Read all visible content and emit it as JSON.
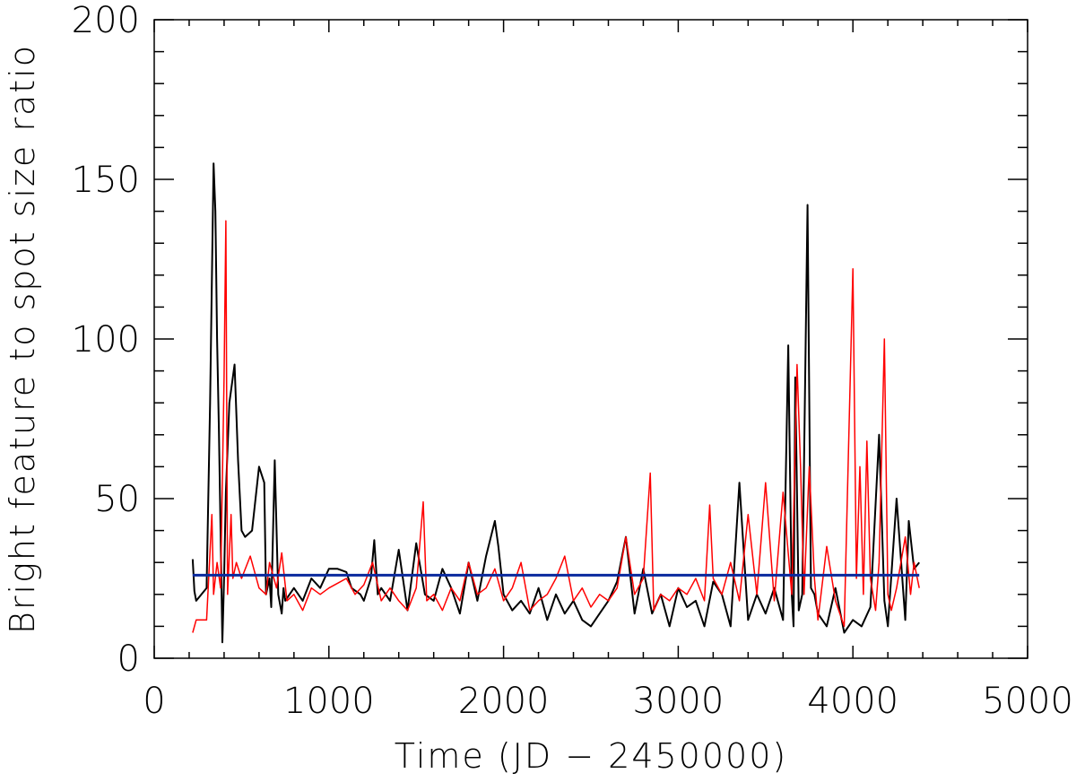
{
  "chart_data": {
    "type": "line",
    "xlabel": "Time (JD − 2450000)",
    "ylabel": "Bright feature to spot size ratio",
    "xlim": [
      0,
      5000
    ],
    "ylim": [
      0,
      200
    ],
    "x_ticks": [
      0,
      1000,
      2000,
      3000,
      4000,
      5000
    ],
    "y_ticks": [
      0,
      50,
      100,
      150,
      200
    ],
    "grid": false,
    "series": [
      {
        "color": "#000000",
        "x": [
          220,
          230,
          240,
          300,
          320,
          340,
          350,
          360,
          370,
          390,
          400,
          410,
          430,
          460,
          480,
          500,
          520,
          540,
          560,
          600,
          630,
          640,
          660,
          670,
          690,
          710,
          730,
          740,
          750,
          800,
          850,
          900,
          950,
          1000,
          1050,
          1100,
          1130,
          1180,
          1200,
          1240,
          1260,
          1280,
          1300,
          1350,
          1400,
          1450,
          1500,
          1550,
          1600,
          1650,
          1700,
          1750,
          1800,
          1850,
          1900,
          1950,
          1970,
          2000,
          2050,
          2100,
          2150,
          2200,
          2250,
          2300,
          2350,
          2400,
          2450,
          2500,
          2550,
          2600,
          2650,
          2700,
          2750,
          2800,
          2850,
          2900,
          2950,
          3000,
          3050,
          3100,
          3150,
          3200,
          3250,
          3300,
          3350,
          3400,
          3450,
          3500,
          3550,
          3600,
          3630,
          3650,
          3660,
          3670,
          3690,
          3710,
          3740,
          3760,
          3780,
          3800,
          3850,
          3900,
          3950,
          4000,
          4050,
          4100,
          4150,
          4180,
          4200,
          4250,
          4300,
          4320,
          4350,
          4380
        ],
        "y": [
          31,
          21,
          18,
          22,
          80,
          155,
          140,
          100,
          72,
          5,
          25,
          52,
          80,
          92,
          62,
          40,
          38,
          39,
          40,
          60,
          55,
          20,
          25,
          16,
          62,
          20,
          14,
          22,
          18,
          22,
          18,
          25,
          22,
          28,
          28,
          27,
          22,
          20,
          18,
          25,
          37,
          20,
          22,
          18,
          34,
          15,
          36,
          20,
          18,
          28,
          22,
          14,
          30,
          18,
          32,
          43,
          35,
          20,
          15,
          18,
          14,
          22,
          12,
          20,
          14,
          18,
          12,
          10,
          14,
          18,
          24,
          38,
          14,
          28,
          14,
          20,
          10,
          22,
          16,
          18,
          10,
          24,
          20,
          10,
          55,
          12,
          20,
          14,
          22,
          12,
          98,
          20,
          10,
          88,
          15,
          20,
          142,
          22,
          20,
          14,
          10,
          22,
          8,
          12,
          10,
          16,
          70,
          18,
          10,
          50,
          12,
          43,
          28,
          30
        ]
      },
      {
        "color": "#ff0000",
        "x": [
          220,
          240,
          300,
          330,
          340,
          360,
          380,
          400,
          410,
          420,
          440,
          450,
          470,
          500,
          550,
          600,
          640,
          660,
          700,
          730,
          760,
          800,
          850,
          900,
          950,
          1000,
          1100,
          1150,
          1200,
          1250,
          1300,
          1350,
          1400,
          1450,
          1500,
          1540,
          1560,
          1600,
          1650,
          1700,
          1750,
          1800,
          1850,
          1900,
          1950,
          2000,
          2050,
          2100,
          2150,
          2200,
          2250,
          2300,
          2350,
          2400,
          2450,
          2500,
          2550,
          2600,
          2650,
          2700,
          2750,
          2800,
          2840,
          2860,
          2900,
          2950,
          3000,
          3050,
          3100,
          3150,
          3180,
          3200,
          3250,
          3300,
          3350,
          3400,
          3450,
          3500,
          3550,
          3600,
          3650,
          3680,
          3700,
          3720,
          3750,
          3780,
          3800,
          3850,
          3900,
          3950,
          4000,
          4020,
          4040,
          4060,
          4080,
          4100,
          4130,
          4150,
          4180,
          4200,
          4220,
          4250,
          4300,
          4330,
          4350,
          4380
        ],
        "y": [
          8,
          12,
          12,
          45,
          20,
          30,
          22,
          88,
          137,
          20,
          45,
          25,
          30,
          25,
          32,
          22,
          20,
          30,
          22,
          33,
          18,
          20,
          15,
          22,
          20,
          22,
          25,
          20,
          23,
          30,
          18,
          22,
          18,
          15,
          22,
          49,
          18,
          20,
          15,
          22,
          18,
          30,
          20,
          22,
          28,
          18,
          22,
          30,
          15,
          18,
          20,
          25,
          32,
          18,
          22,
          16,
          20,
          18,
          22,
          38,
          20,
          25,
          58,
          15,
          20,
          18,
          22,
          20,
          25,
          18,
          48,
          25,
          20,
          30,
          18,
          45,
          20,
          55,
          18,
          52,
          20,
          92,
          60,
          20,
          60,
          25,
          12,
          35,
          18,
          10,
          122,
          25,
          60,
          20,
          68,
          25,
          15,
          30,
          100,
          20,
          15,
          22,
          38,
          20,
          30,
          22
        ]
      },
      {
        "color": "#0a2a9e",
        "x": [
          220,
          4380
        ],
        "y": [
          26,
          26
        ]
      }
    ]
  }
}
